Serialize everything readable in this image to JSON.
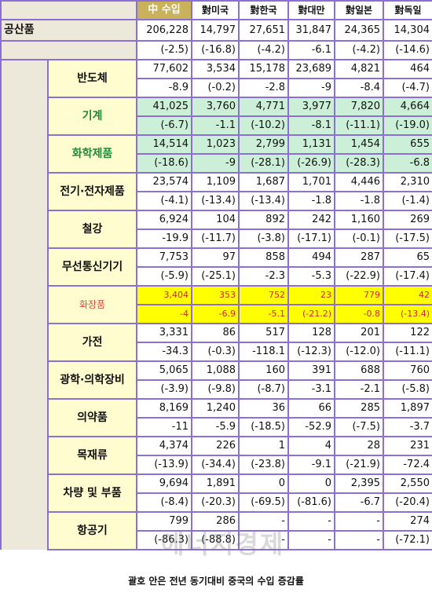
{
  "header": [
    "中 수입",
    "對미국",
    "對한국",
    "對대만",
    "對일본",
    "對독일"
  ],
  "summary": {
    "label": "공산품",
    "values": [
      "206,228",
      "14,797",
      "27,651",
      "31,847",
      "24,365",
      "14,304"
    ],
    "changes": [
      "(-2.5)",
      "(-16.8)",
      "(-4.2)",
      "-6.1",
      "(-4.2)",
      "(-14.6)"
    ]
  },
  "items": [
    {
      "label": "반도체",
      "style": "",
      "values": [
        "77,602",
        "3,534",
        "15,178",
        "23,689",
        "4,821",
        "464"
      ],
      "changes": [
        "-8.9",
        "(-0.2)",
        "-2.8",
        "-9",
        "-8.4",
        "(-4.7)"
      ]
    },
    {
      "label": "기계",
      "style": "green",
      "values": [
        "41,025",
        "3,760",
        "4,771",
        "3,977",
        "7,820",
        "4,664"
      ],
      "changes": [
        "(-6.7)",
        "-1.1",
        "(-10.2)",
        "-8.1",
        "(-11.1)",
        "(-19.0)"
      ]
    },
    {
      "label": "화학제품",
      "style": "green",
      "values": [
        "14,514",
        "1,023",
        "2,799",
        "1,131",
        "1,454",
        "655"
      ],
      "changes": [
        "(-18.6)",
        "-9",
        "(-28.1)",
        "(-26.9)",
        "(-28.3)",
        "-6.8"
      ]
    },
    {
      "label": "전기·전자제품",
      "style": "",
      "values": [
        "23,574",
        "1,109",
        "1,687",
        "1,701",
        "4,446",
        "2,310"
      ],
      "changes": [
        "(-4.1)",
        "(-13.4)",
        "(-13.4)",
        "-1.8",
        "-1.8",
        "(-1.4)"
      ]
    },
    {
      "label": "철강",
      "style": "",
      "values": [
        "6,924",
        "104",
        "892",
        "242",
        "1,160",
        "269"
      ],
      "changes": [
        "-19.9",
        "(-11.7)",
        "(-3.8)",
        "(-17.1)",
        "(-0.1)",
        "(-17.5)"
      ]
    },
    {
      "label": "무선통신기기",
      "style": "",
      "values": [
        "7,753",
        "97",
        "858",
        "494",
        "287",
        "65"
      ],
      "changes": [
        "(-5.9)",
        "(-25.1)",
        "-2.3",
        "-5.3",
        "(-22.9)",
        "(-17.4)"
      ]
    },
    {
      "label": "화장품",
      "style": "yellow",
      "values": [
        "3,404",
        "353",
        "752",
        "23",
        "779",
        "42"
      ],
      "changes": [
        "-4",
        "-6.9",
        "-5.1",
        "(-21.2)",
        "-0.8",
        "(-13.4)"
      ]
    },
    {
      "label": "가전",
      "style": "",
      "values": [
        "3,331",
        "86",
        "517",
        "128",
        "201",
        "122"
      ],
      "changes": [
        "-34.3",
        "(-0.3)",
        "-118.1",
        "(-12.3)",
        "(-12.0)",
        "(-11.1)"
      ]
    },
    {
      "label": "광학·의학장비",
      "style": "",
      "values": [
        "5,065",
        "1,088",
        "160",
        "391",
        "688",
        "760"
      ],
      "changes": [
        "(-3.9)",
        "(-9.8)",
        "(-8.7)",
        "-3.1",
        "-2.1",
        "(-5.8)"
      ]
    },
    {
      "label": "의약품",
      "style": "",
      "values": [
        "8,169",
        "1,240",
        "36",
        "66",
        "285",
        "1,897"
      ],
      "changes": [
        "-11",
        "-5.9",
        "(-18.5)",
        "-52.9",
        "(-7.5)",
        "-3.7"
      ]
    },
    {
      "label": "목재류",
      "style": "",
      "values": [
        "4,374",
        "226",
        "1",
        "4",
        "28",
        "231"
      ],
      "changes": [
        "(-13.9)",
        "(-34.4)",
        "(-23.8)",
        "-9.1",
        "(-21.9)",
        "-72.4"
      ]
    },
    {
      "label": "차량 및 부품",
      "style": "",
      "values": [
        "9,694",
        "1,891",
        "0",
        "0",
        "2,395",
        "2,550"
      ],
      "changes": [
        "(-8.4)",
        "(-20.3)",
        "(-69.5)",
        "(-81.6)",
        "-6.7",
        "(-20.4)"
      ]
    },
    {
      "label": "항공기",
      "style": "",
      "values": [
        "799",
        "286",
        "-",
        "-",
        "-",
        "274"
      ],
      "changes": [
        "(-86.3)",
        "(-88.8)",
        "-",
        "-",
        "-",
        "(-72.1)"
      ]
    }
  ],
  "caption": "괄호 안은 전년 동기대비 중국의 수입 증감률",
  "watermark": "에너지경제"
}
